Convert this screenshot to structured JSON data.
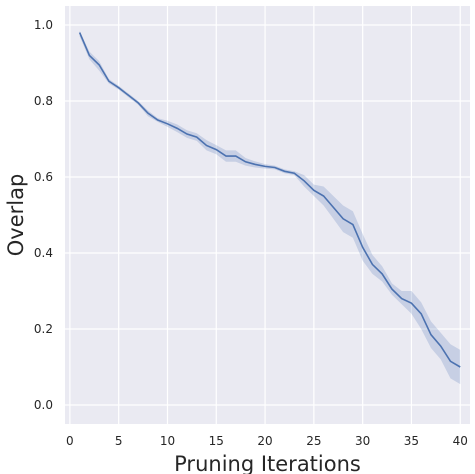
{
  "chart_data": {
    "type": "line",
    "title": "",
    "xlabel": "Pruning Iterations",
    "ylabel": "Overlap",
    "xlim": [
      -0.5,
      41
    ],
    "ylim": [
      -0.05,
      1.05
    ],
    "xticks": [
      0,
      5,
      10,
      15,
      20,
      25,
      30,
      35,
      40
    ],
    "yticks": [
      0.0,
      0.2,
      0.4,
      0.6,
      0.8,
      1.0
    ],
    "xtick_labels": [
      "0",
      "5",
      "10",
      "15",
      "20",
      "25",
      "30",
      "35",
      "40"
    ],
    "ytick_labels": [
      "0.0",
      "0.2",
      "0.4",
      "0.6",
      "0.8",
      "1.0"
    ],
    "grid": true,
    "legend": false,
    "background_color": "#eaeaf2",
    "grid_color": "#ffffff",
    "line_color": "#4c72b0",
    "band_color": "#4c72b0",
    "series": [
      {
        "x": [
          1,
          2,
          3,
          4,
          5,
          6,
          7,
          8,
          9,
          10,
          11,
          12,
          13,
          14,
          15,
          16,
          17,
          18,
          19,
          20,
          21,
          22,
          23,
          24,
          25,
          26,
          27,
          28,
          29,
          30,
          31,
          32,
          33,
          34,
          35,
          36,
          37,
          38,
          39,
          40
        ],
        "y": [
          0.98,
          0.92,
          0.895,
          0.852,
          0.835,
          0.815,
          0.795,
          0.768,
          0.75,
          0.74,
          0.728,
          0.713,
          0.705,
          0.683,
          0.672,
          0.655,
          0.655,
          0.64,
          0.633,
          0.628,
          0.625,
          0.615,
          0.61,
          0.59,
          0.565,
          0.55,
          0.52,
          0.49,
          0.475,
          0.415,
          0.37,
          0.345,
          0.305,
          0.28,
          0.268,
          0.24,
          0.185,
          0.155,
          0.115,
          0.1
        ],
        "lower": [
          0.97,
          0.91,
          0.88,
          0.846,
          0.83,
          0.81,
          0.79,
          0.76,
          0.745,
          0.732,
          0.718,
          0.703,
          0.695,
          0.67,
          0.66,
          0.64,
          0.64,
          0.63,
          0.625,
          0.622,
          0.62,
          0.61,
          0.605,
          0.575,
          0.55,
          0.525,
          0.49,
          0.455,
          0.44,
          0.38,
          0.345,
          0.325,
          0.29,
          0.265,
          0.24,
          0.2,
          0.15,
          0.12,
          0.07,
          0.055
        ],
        "upper": [
          0.985,
          0.93,
          0.905,
          0.858,
          0.84,
          0.82,
          0.8,
          0.775,
          0.755,
          0.748,
          0.738,
          0.723,
          0.715,
          0.697,
          0.684,
          0.67,
          0.67,
          0.65,
          0.641,
          0.634,
          0.63,
          0.62,
          0.615,
          0.605,
          0.58,
          0.575,
          0.55,
          0.525,
          0.51,
          0.45,
          0.395,
          0.365,
          0.32,
          0.3,
          0.3,
          0.27,
          0.22,
          0.19,
          0.16,
          0.145
        ]
      }
    ]
  }
}
